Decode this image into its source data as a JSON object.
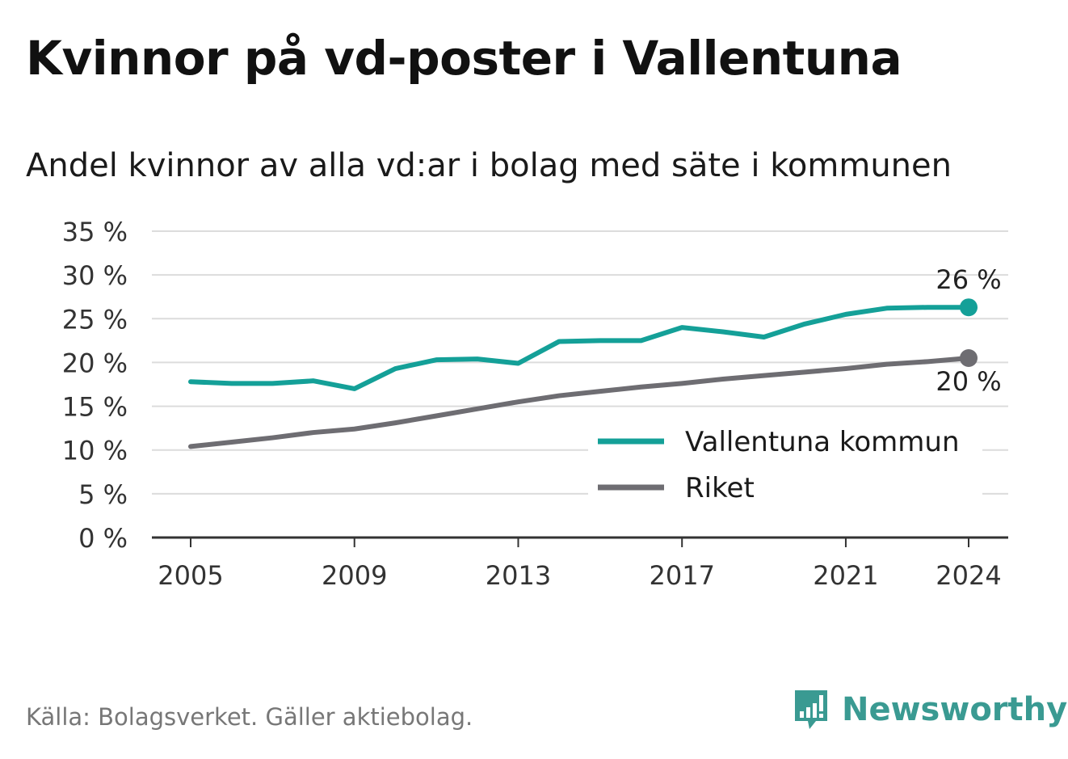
{
  "header": {
    "title": "Kvinnor på vd-poster i Vallentuna",
    "subtitle": "Andel kvinnor av alla vd:ar i bolag med säte i kommunen"
  },
  "footer": {
    "source": "Källa: Bolagsverket. Gäller aktiebolag.",
    "brand": "Newsworthy",
    "brand_icon": "newsworthy-logo-icon",
    "brand_color": "#3a9a92"
  },
  "chart_data": {
    "type": "line",
    "x": [
      2005,
      2006,
      2007,
      2008,
      2009,
      2010,
      2011,
      2012,
      2013,
      2014,
      2015,
      2016,
      2017,
      2018,
      2019,
      2020,
      2021,
      2022,
      2023,
      2024
    ],
    "x_ticks": [
      "2005",
      "2009",
      "2013",
      "2017",
      "2021",
      "2024"
    ],
    "y_ticks": [
      "0 %",
      "5 %",
      "10 %",
      "15 %",
      "20 %",
      "25 %",
      "30 %",
      "35 %"
    ],
    "ylim": [
      0,
      35
    ],
    "grid": true,
    "legend_position": "bottom-right",
    "series": [
      {
        "name": "Vallentuna kommun",
        "color": "#14a098",
        "values": [
          17.8,
          17.6,
          17.6,
          17.9,
          17.0,
          19.3,
          20.3,
          20.4,
          19.9,
          22.4,
          22.5,
          22.5,
          24.0,
          23.5,
          22.9,
          24.4,
          25.5,
          26.2,
          26.3,
          26.3
        ],
        "end_label": "26 %"
      },
      {
        "name": "Riket",
        "color": "#6e6d72",
        "values": [
          10.4,
          10.9,
          11.4,
          12.0,
          12.4,
          13.1,
          13.9,
          14.7,
          15.5,
          16.2,
          16.7,
          17.2,
          17.6,
          18.1,
          18.5,
          18.9,
          19.3,
          19.8,
          20.1,
          20.5
        ],
        "end_label": "20 %"
      }
    ]
  }
}
